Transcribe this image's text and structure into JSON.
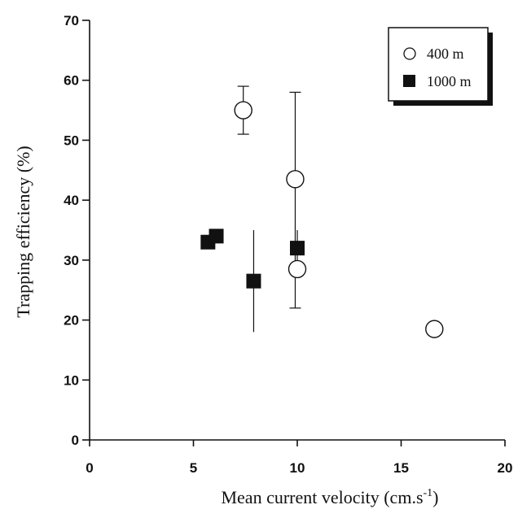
{
  "chart_data": {
    "type": "scatter",
    "xlabel": "Mean current velocity (cm.s",
    "xlabel_superscript": "-1",
    "xlabel_suffix": ")",
    "ylabel": "Trapping efficiency (%)",
    "xlim": [
      0,
      20
    ],
    "ylim": [
      0,
      70
    ],
    "x_ticks": [
      0,
      5,
      10,
      15,
      20
    ],
    "y_ticks": [
      0,
      10,
      20,
      30,
      40,
      50,
      60,
      70
    ],
    "legend_position": "top-right",
    "series": [
      {
        "name": "400 m",
        "marker": "open-circle",
        "color": "#111111",
        "points": [
          {
            "x": 7.4,
            "y": 55,
            "err_low": 51,
            "err_high": 59
          },
          {
            "x": 9.9,
            "y": 43.5,
            "err_low": 22,
            "err_high": 58
          },
          {
            "x": 10.0,
            "y": 28.5,
            "err_low": null,
            "err_high": null
          },
          {
            "x": 16.6,
            "y": 18.5,
            "err_low": null,
            "err_high": null
          }
        ]
      },
      {
        "name": "1000 m",
        "marker": "filled-square",
        "color": "#111111",
        "points": [
          {
            "x": 5.7,
            "y": 33,
            "err_low": null,
            "err_high": null
          },
          {
            "x": 6.1,
            "y": 34,
            "err_low": null,
            "err_high": null
          },
          {
            "x": 7.9,
            "y": 26.5,
            "err_low": 18,
            "err_high": 35
          },
          {
            "x": 10.0,
            "y": 32,
            "err_low": 30,
            "err_high": 35
          }
        ]
      }
    ]
  }
}
